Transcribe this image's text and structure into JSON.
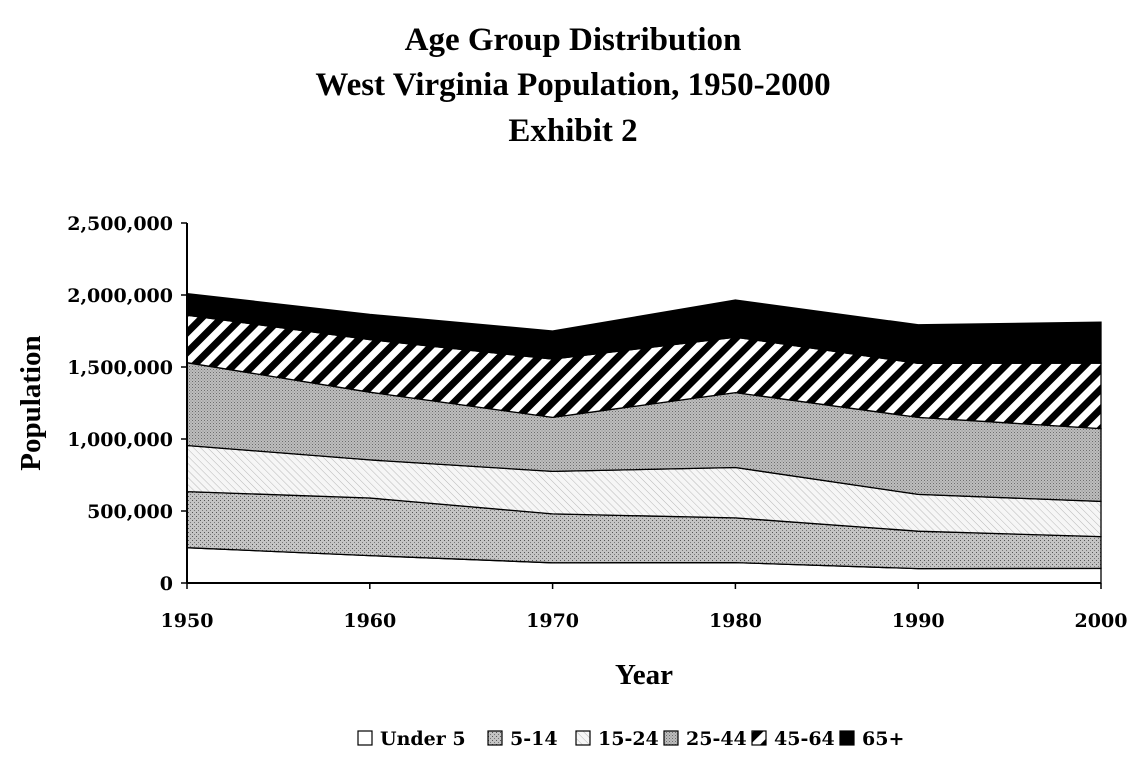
{
  "chart_data": {
    "type": "area",
    "stacked": true,
    "title": [
      "Age Group Distribution",
      "West Virginia Population, 1950-2000",
      "Exhibit 2"
    ],
    "xlabel": "Year",
    "ylabel": "Population",
    "x": [
      1950,
      1960,
      1970,
      1980,
      1990,
      2000
    ],
    "ylim": [
      0,
      2500000
    ],
    "yticks": [
      0,
      500000,
      1000000,
      1500000,
      2000000,
      2500000
    ],
    "ytick_labels": [
      "0",
      "500,000",
      "1,000,000",
      "1,500,000",
      "2,000,000",
      "2,500,000"
    ],
    "legend_position": "bottom",
    "series": [
      {
        "name": "Under 5",
        "values": [
          245000,
          190000,
          140000,
          142000,
          100000,
          102000
        ],
        "fill": "white"
      },
      {
        "name": "5-14",
        "values": [
          390000,
          400000,
          340000,
          310000,
          260000,
          220000
        ],
        "fill": "dots"
      },
      {
        "name": "15-24",
        "values": [
          320000,
          265000,
          295000,
          350000,
          255000,
          245000
        ],
        "fill": "hatch-light"
      },
      {
        "name": "25-44",
        "values": [
          575000,
          470000,
          375000,
          520000,
          535000,
          505000
        ],
        "fill": "dense-dots"
      },
      {
        "name": "45-64",
        "values": [
          330000,
          365000,
          405000,
          385000,
          375000,
          455000
        ],
        "fill": "diagonal-stripes"
      },
      {
        "name": "65+",
        "values": [
          150000,
          175000,
          195000,
          258000,
          268000,
          285000
        ],
        "fill": "black"
      }
    ]
  }
}
